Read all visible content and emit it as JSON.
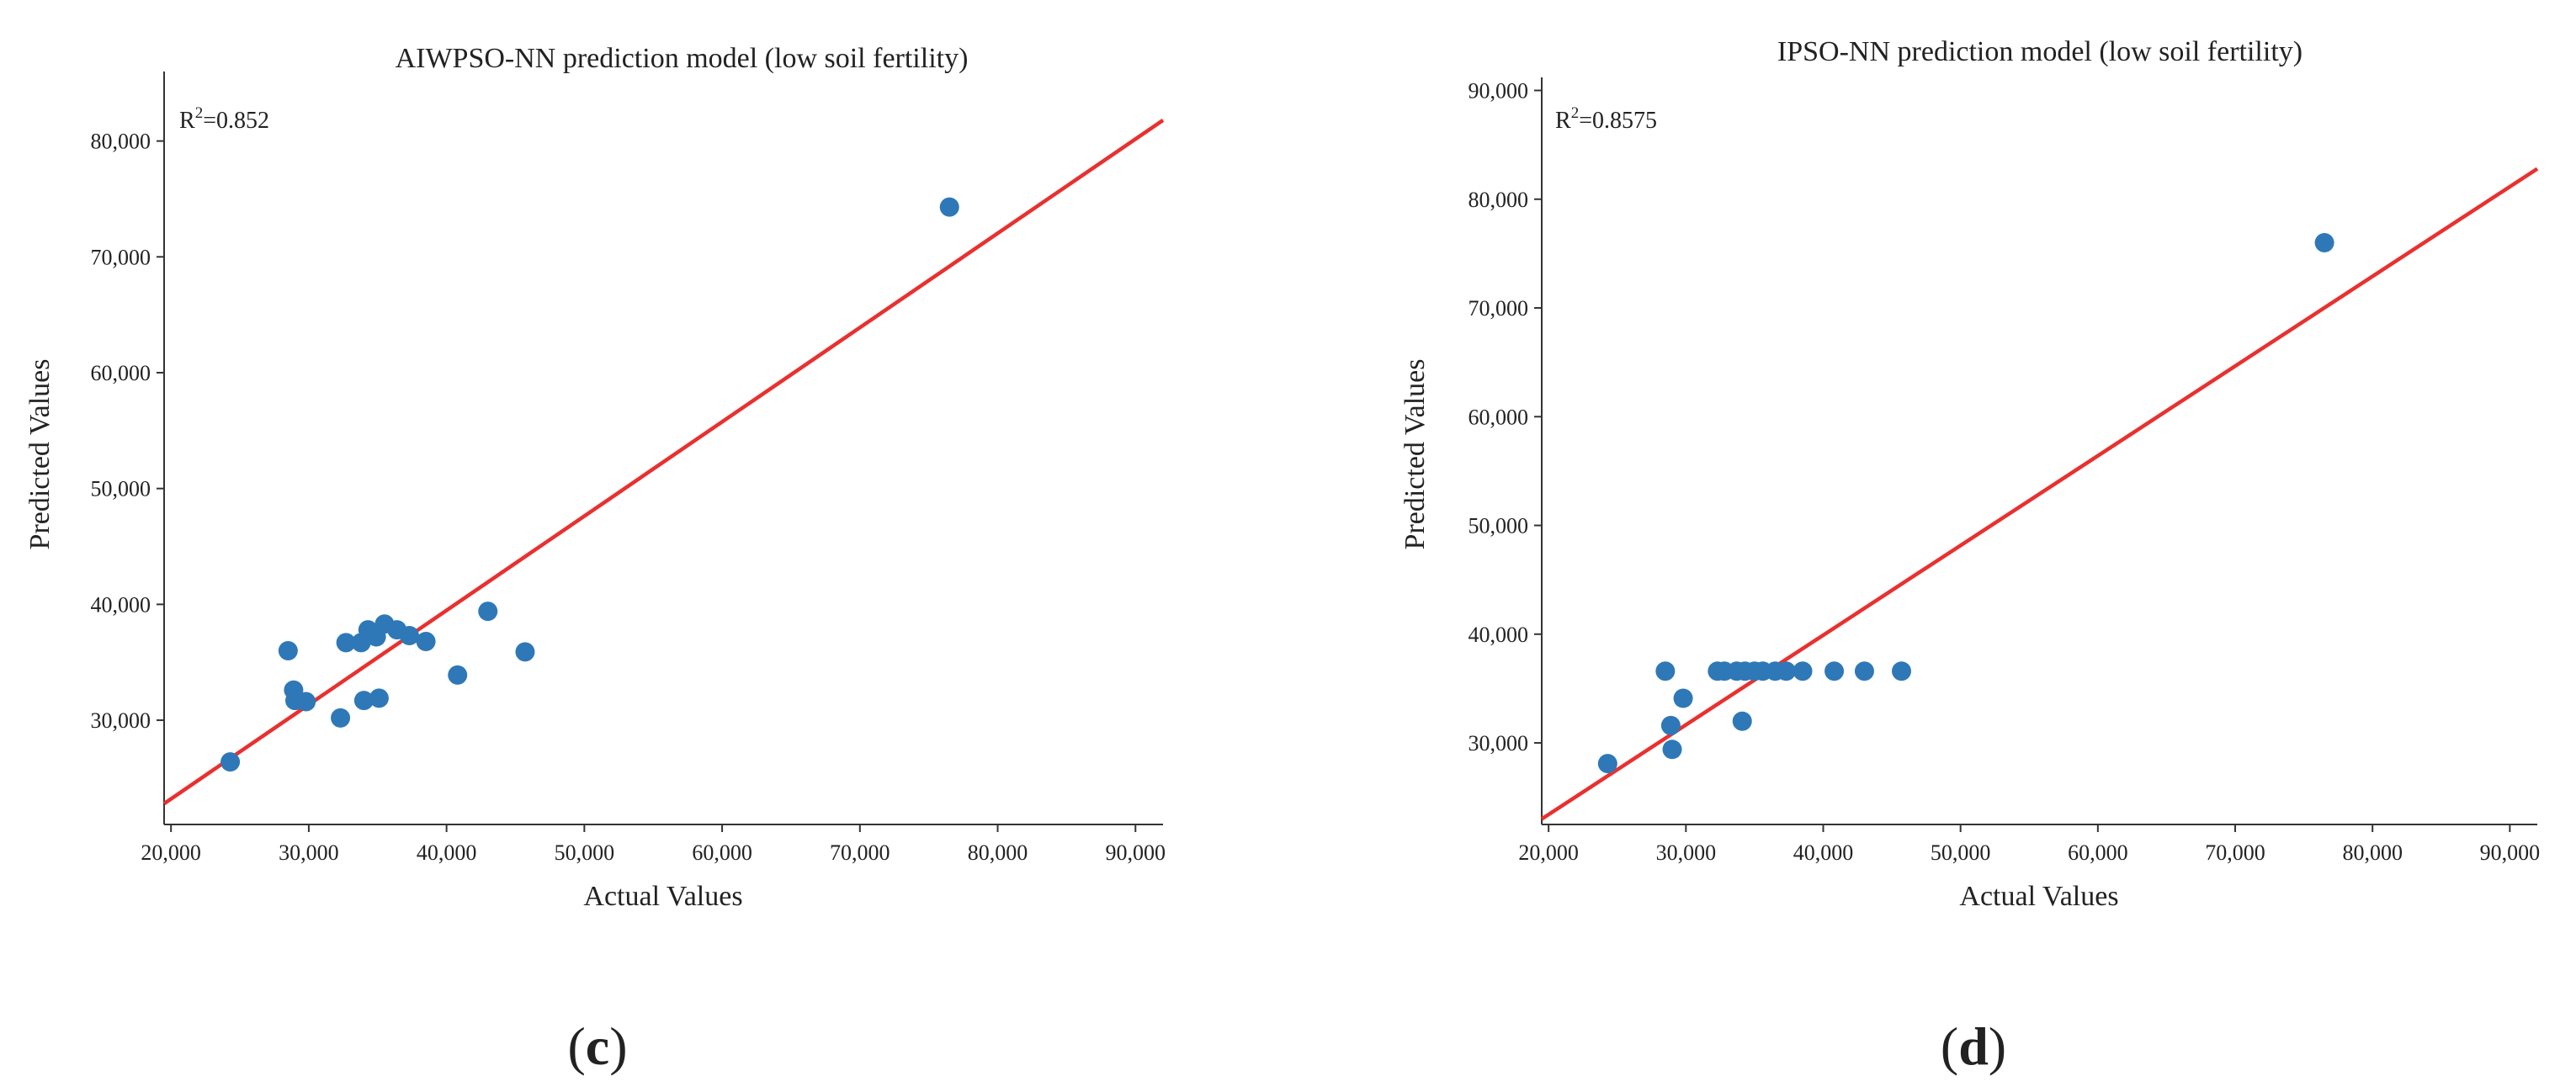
{
  "chart_data": [
    {
      "type": "scatter",
      "panel": "c",
      "title": "AIWPSO-NN prediction model (low soil fertility)",
      "xlabel": "Actual Values",
      "ylabel": "Predicted Values",
      "annotation": {
        "base": "R",
        "sup": "2",
        "value": "=0.852"
      },
      "xlim": [
        19500,
        92000
      ],
      "ylim": [
        21000,
        86000
      ],
      "xticks": [
        20000,
        30000,
        40000,
        50000,
        60000,
        70000,
        80000,
        90000
      ],
      "xtick_labels": [
        "20,000",
        "30,000",
        "40,000",
        "50,000",
        "60,000",
        "70,000",
        "80,000",
        "90,000"
      ],
      "yticks": [
        30000,
        40000,
        50000,
        60000,
        70000,
        80000
      ],
      "ytick_labels": [
        "30,000",
        "40,000",
        "50,000",
        "60,000",
        "70,000",
        "80,000"
      ],
      "fit_line": {
        "x": [
          19500,
          92000
        ],
        "y": [
          22800,
          81800
        ],
        "color": "#e8312f"
      },
      "point_color": "#2e78b8",
      "points": [
        {
          "x": 24300,
          "y": 26400
        },
        {
          "x": 28500,
          "y": 36000
        },
        {
          "x": 28900,
          "y": 32600
        },
        {
          "x": 29000,
          "y": 31700
        },
        {
          "x": 29800,
          "y": 31600
        },
        {
          "x": 32300,
          "y": 30200
        },
        {
          "x": 32700,
          "y": 36700
        },
        {
          "x": 33800,
          "y": 36700
        },
        {
          "x": 34000,
          "y": 31700
        },
        {
          "x": 34300,
          "y": 37800
        },
        {
          "x": 34900,
          "y": 37200
        },
        {
          "x": 35100,
          "y": 31900
        },
        {
          "x": 35500,
          "y": 38300
        },
        {
          "x": 36400,
          "y": 37800
        },
        {
          "x": 37300,
          "y": 37300
        },
        {
          "x": 38500,
          "y": 36800
        },
        {
          "x": 40800,
          "y": 33900
        },
        {
          "x": 43000,
          "y": 39400
        },
        {
          "x": 45700,
          "y": 35900
        },
        {
          "x": 76500,
          "y": 74300
        }
      ]
    },
    {
      "type": "scatter",
      "panel": "d",
      "title": "IPSO-NN prediction model (low soil fertility)",
      "xlabel": "Actual Values",
      "ylabel": "Predicted Values",
      "annotation": {
        "base": "R",
        "sup": "2",
        "value": "=0.8575"
      },
      "xlim": [
        19500,
        92000
      ],
      "ylim": [
        22500,
        91200
      ],
      "xticks": [
        20000,
        30000,
        40000,
        50000,
        60000,
        70000,
        80000,
        90000
      ],
      "xtick_labels": [
        "20,000",
        "30,000",
        "40,000",
        "50,000",
        "60,000",
        "70,000",
        "80,000",
        "90,000"
      ],
      "yticks": [
        30000,
        40000,
        50000,
        60000,
        70000,
        80000,
        90000
      ],
      "ytick_labels": [
        "30,000",
        "40,000",
        "50,000",
        "60,000",
        "70,000",
        "80,000",
        "90,000"
      ],
      "fit_line": {
        "x": [
          19500,
          92000
        ],
        "y": [
          23000,
          82800
        ],
        "color": "#e8312f"
      },
      "point_color": "#2e78b8",
      "points": [
        {
          "x": 24300,
          "y": 28100
        },
        {
          "x": 28500,
          "y": 36600
        },
        {
          "x": 28900,
          "y": 31600
        },
        {
          "x": 29000,
          "y": 29400
        },
        {
          "x": 29800,
          "y": 34100
        },
        {
          "x": 32300,
          "y": 36600
        },
        {
          "x": 32800,
          "y": 36600
        },
        {
          "x": 33700,
          "y": 36600
        },
        {
          "x": 34100,
          "y": 32000
        },
        {
          "x": 34300,
          "y": 36600
        },
        {
          "x": 35000,
          "y": 36600
        },
        {
          "x": 35600,
          "y": 36600
        },
        {
          "x": 36500,
          "y": 36600
        },
        {
          "x": 37300,
          "y": 36600
        },
        {
          "x": 38500,
          "y": 36600
        },
        {
          "x": 40800,
          "y": 36600
        },
        {
          "x": 43000,
          "y": 36600
        },
        {
          "x": 45700,
          "y": 36600
        },
        {
          "x": 76500,
          "y": 76000
        }
      ]
    }
  ]
}
